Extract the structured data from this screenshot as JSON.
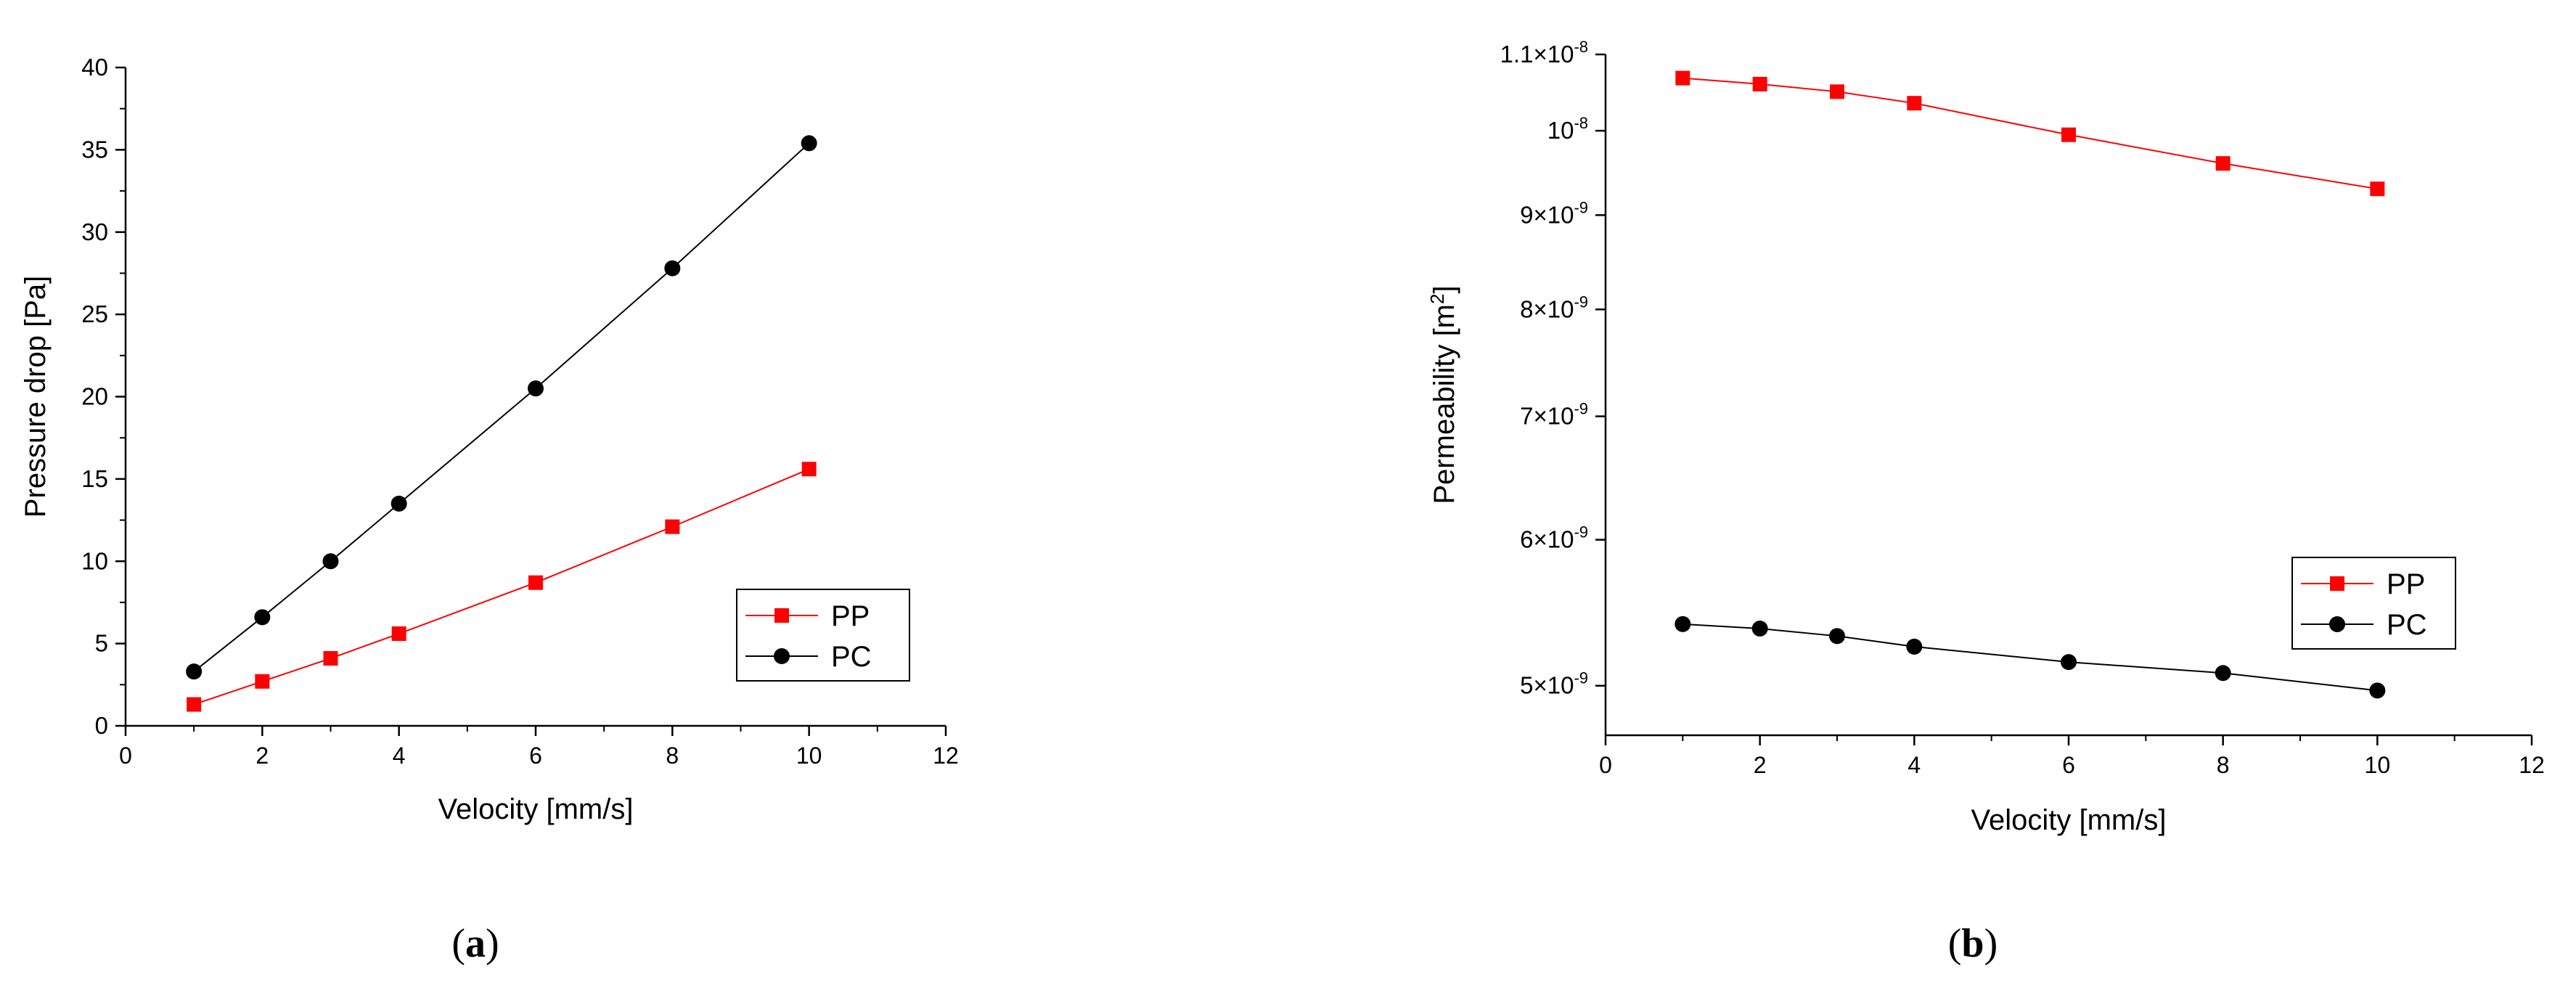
{
  "chart_data": [
    {
      "type": "line",
      "xlabel": "Velocity [mm/s]",
      "ylabel": "Pressure drop [Pa]",
      "xlim": [
        0,
        12
      ],
      "ylim": [
        0,
        40
      ],
      "xticks": [
        "0",
        "2",
        "4",
        "6",
        "8",
        "10",
        "12"
      ],
      "yticks": [
        "0",
        "5",
        "10",
        "15",
        "20",
        "25",
        "30",
        "35",
        "40"
      ],
      "x": [
        1,
        2,
        3,
        4,
        6,
        8,
        10
      ],
      "series": [
        {
          "name": "PP",
          "color": "#ff0000",
          "marker": "square",
          "values": [
            1.3,
            2.7,
            4.1,
            5.6,
            8.7,
            12.1,
            15.6
          ]
        },
        {
          "name": "PC",
          "color": "#000000",
          "marker": "circle",
          "values": [
            3.3,
            6.6,
            10.0,
            13.5,
            20.5,
            27.8,
            35.4
          ]
        }
      ],
      "legend": "right",
      "caption": "(a)"
    },
    {
      "type": "line",
      "xlabel": "Velocity [mm/s]",
      "ylabel": "Permeability [m²]",
      "yscale": "log",
      "xlim": [
        0,
        12
      ],
      "ylim": [
        4.7e-09,
        1.1e-08
      ],
      "xticks": [
        "0",
        "2",
        "4",
        "6",
        "8",
        "10",
        "12"
      ],
      "yticks": [
        {
          "value": 1.1e-08,
          "mant": "1.1×10",
          "exp": "-8"
        },
        {
          "value": 1e-08,
          "mant": "10",
          "exp": "-8"
        },
        {
          "value": 9e-09,
          "mant": "9×10",
          "exp": "-9"
        },
        {
          "value": 8e-09,
          "mant": "8×10",
          "exp": "-9"
        },
        {
          "value": 7e-09,
          "mant": "7×10",
          "exp": "-9"
        },
        {
          "value": 6e-09,
          "mant": "6×10",
          "exp": "-9"
        },
        {
          "value": 5e-09,
          "mant": "5×10",
          "exp": "-9"
        }
      ],
      "x": [
        1,
        2,
        3,
        4,
        6,
        8,
        10
      ],
      "series": [
        {
          "name": "PP",
          "color": "#ff0000",
          "marker": "square",
          "values": [
            1.068e-08,
            1.06e-08,
            1.05e-08,
            1.035e-08,
            9.95e-09,
            9.6e-09,
            9.3e-09
          ]
        },
        {
          "name": "PC",
          "color": "#000000",
          "marker": "circle",
          "values": [
            5.4e-09,
            5.37e-09,
            5.32e-09,
            5.25e-09,
            5.15e-09,
            5.08e-09,
            4.97e-09
          ]
        }
      ],
      "legend": "right",
      "caption": "(b)"
    }
  ]
}
